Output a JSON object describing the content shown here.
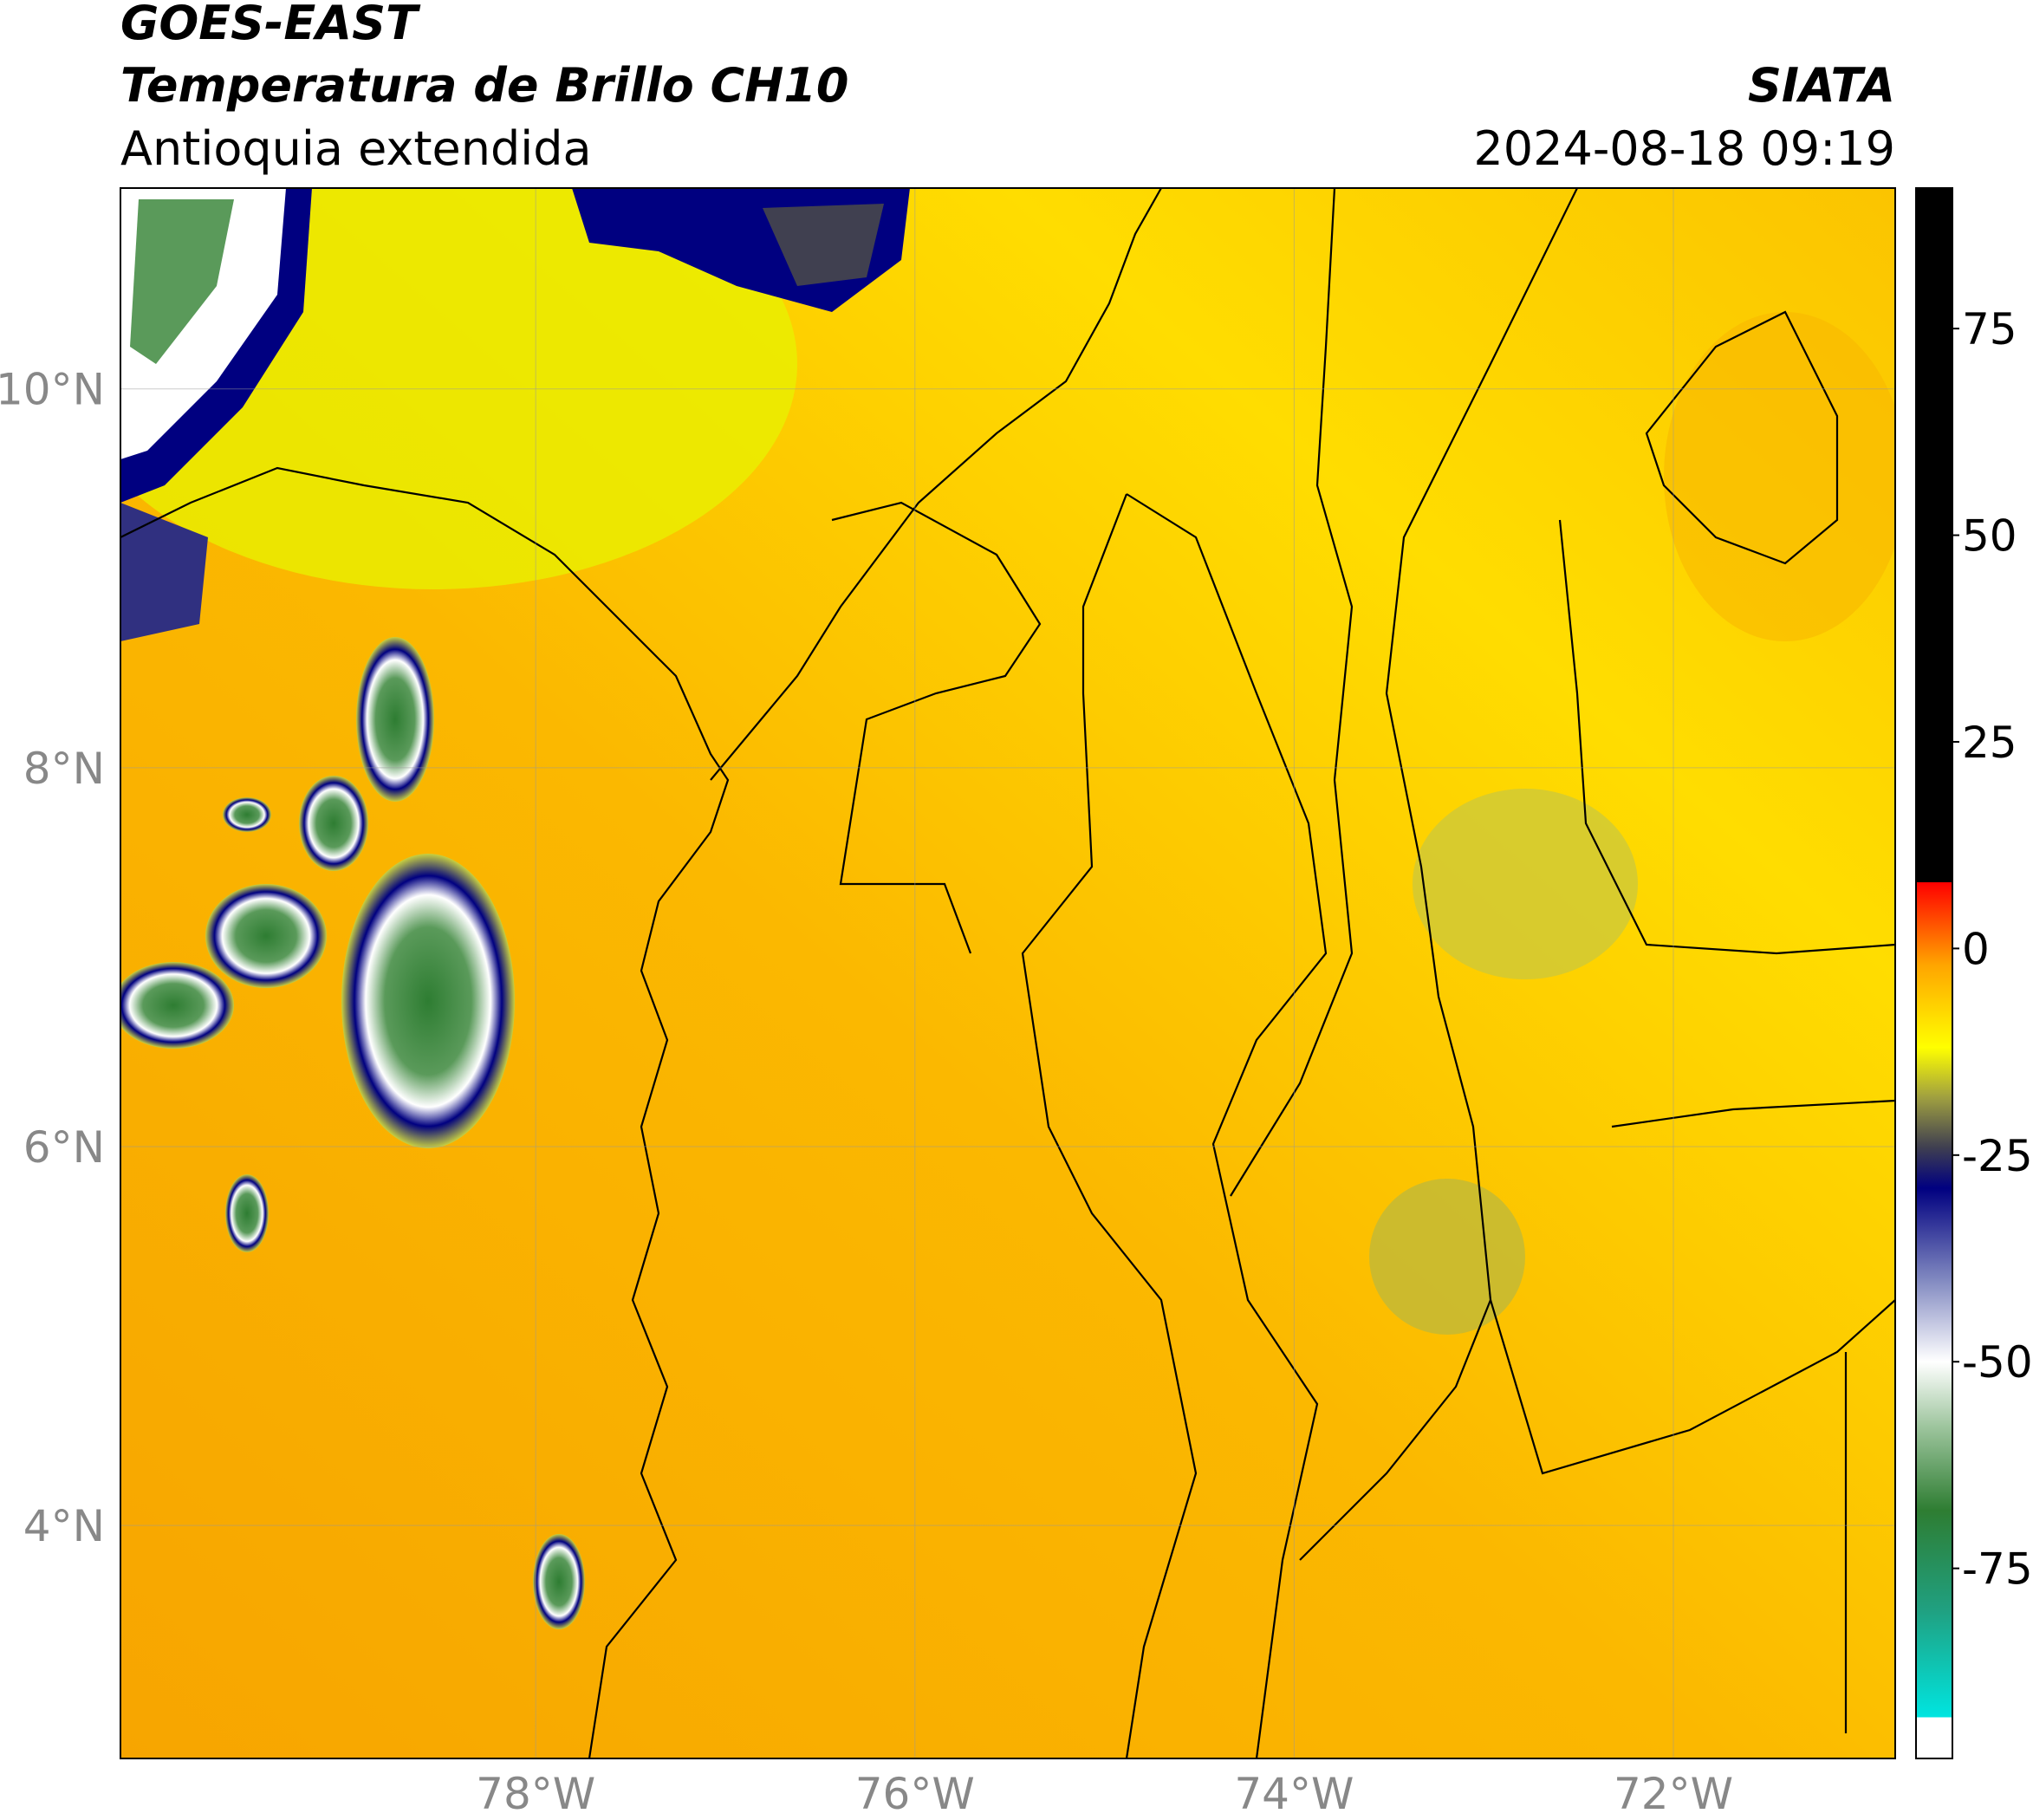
{
  "header": {
    "title": "GOES-EAST",
    "subtitle": "Temperatura de Brillo CH10",
    "region": "Antioquia extendida",
    "source": "SIATA",
    "datetime": "2024-08-18 09:19"
  },
  "map": {
    "xlim": [
      -80.19,
      -70.83
    ],
    "ylim": [
      2.77,
      11.06
    ],
    "xticks": [
      {
        "value": -78,
        "label": "78°W"
      },
      {
        "value": -76,
        "label": "76°W"
      },
      {
        "value": -74,
        "label": "74°W"
      },
      {
        "value": -72,
        "label": "72°W"
      }
    ],
    "yticks": [
      {
        "value": 4,
        "label": "4°N"
      },
      {
        "value": 6,
        "label": "6°N"
      },
      {
        "value": 8,
        "label": "8°N"
      },
      {
        "value": 10,
        "label": "10°N"
      }
    ],
    "grid": true
  },
  "colorbar": {
    "lim": [
      -98,
      92
    ],
    "ticks": [
      -75,
      -50,
      -25,
      0,
      25,
      50,
      75
    ],
    "stops": [
      {
        "value": -98,
        "color": "#ffffff"
      },
      {
        "value": -93,
        "color": "#ffffff"
      },
      {
        "value": -93,
        "color": "#00e5e0"
      },
      {
        "value": -80,
        "color": "#20a080"
      },
      {
        "value": -68,
        "color": "#2e7d32"
      },
      {
        "value": -58,
        "color": "#9cc49c"
      },
      {
        "value": -50,
        "color": "#ffffff"
      },
      {
        "value": -40,
        "color": "#8088c0"
      },
      {
        "value": -29,
        "color": "#000080"
      },
      {
        "value": -24,
        "color": "#404050"
      },
      {
        "value": -18,
        "color": "#a0a040"
      },
      {
        "value": -12,
        "color": "#ffff00"
      },
      {
        "value": -2,
        "color": "#ffa500"
      },
      {
        "value": 8,
        "color": "#ff0000"
      },
      {
        "value": 8,
        "color": "#000000"
      },
      {
        "value": 92,
        "color": "#000000"
      }
    ]
  }
}
